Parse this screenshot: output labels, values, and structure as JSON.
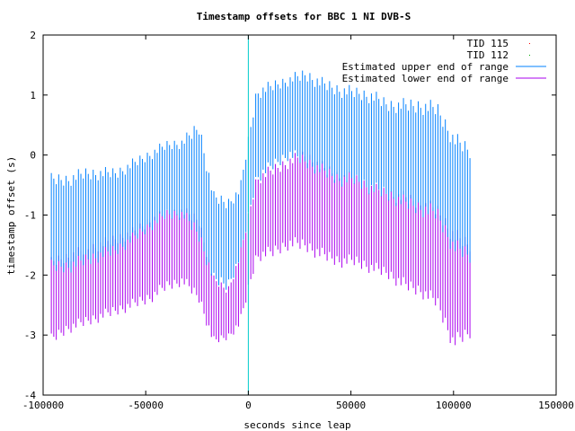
{
  "chart_data": {
    "type": "line",
    "title": "Timestamp offsets for BBC 1 NI DVB-S",
    "xlabel": "seconds since leap",
    "ylabel": "timestamp offset (s)",
    "xlim": [
      -100000,
      150000
    ],
    "ylim": [
      -4,
      2
    ],
    "x_ticks": [
      -100000,
      -50000,
      0,
      50000,
      100000,
      150000
    ],
    "x_tick_labels": [
      "-100000",
      "-50000",
      "0",
      "50000",
      "100000",
      "150000"
    ],
    "y_ticks": [
      -4,
      -3,
      -2,
      -1,
      0,
      1,
      2
    ],
    "y_tick_labels": [
      "-4",
      "-3",
      "-2",
      "-1",
      "0",
      "1",
      "2"
    ],
    "grid": false,
    "legend_position": "top-right",
    "leap_marker": {
      "x": 0,
      "color": "#00cccc"
    },
    "series": [
      {
        "name": "TID 115",
        "style": "points",
        "color": "#ff0000",
        "points": []
      },
      {
        "name": "TID 112",
        "style": "points",
        "color": "#00aa00",
        "points": []
      },
      {
        "name": "Estimated upper end of range",
        "style": "impulse-band",
        "color": "#0080ff",
        "x": [
          -96000,
          -88000,
          -80000,
          -72000,
          -64000,
          -56000,
          -48000,
          -40000,
          -32000,
          -24000,
          -17000,
          -10000,
          -4000,
          4000,
          12000,
          20000,
          28000,
          36000,
          44000,
          52000,
          60000,
          68000,
          76000,
          84000,
          92000,
          100000,
          108000
        ],
        "high": [
          -0.3,
          -0.3,
          -0.2,
          -0.2,
          -0.2,
          -0.05,
          0.1,
          0.25,
          0.3,
          0.6,
          -0.6,
          -0.7,
          -0.5,
          1.15,
          1.25,
          1.35,
          1.45,
          1.3,
          1.2,
          1.15,
          1.1,
          0.95,
          0.95,
          0.95,
          0.9,
          0.4,
          0.2
        ],
        "low": [
          -2.0,
          -2.0,
          -1.9,
          -1.8,
          -1.7,
          -1.5,
          -1.3,
          -1.1,
          -1.1,
          -1.5,
          -2.2,
          -2.3,
          -1.8,
          -0.5,
          -0.3,
          -0.1,
          -0.25,
          -0.4,
          -0.55,
          -0.55,
          -0.7,
          -0.8,
          -0.95,
          -1.05,
          -1.15,
          -1.7,
          -1.85
        ]
      },
      {
        "name": "Estimated lower end of range",
        "style": "impulse-band",
        "color": "#aa00ee",
        "x": [
          -96000,
          -88000,
          -80000,
          -72000,
          -64000,
          -56000,
          -48000,
          -40000,
          -32000,
          -24000,
          -17000,
          -10000,
          -4000,
          4000,
          12000,
          20000,
          28000,
          36000,
          44000,
          52000,
          60000,
          68000,
          76000,
          84000,
          92000,
          100000,
          108000
        ],
        "high": [
          -1.7,
          -1.6,
          -1.5,
          -1.4,
          -1.3,
          -1.2,
          -1.0,
          -0.9,
          -0.85,
          -1.0,
          -2.0,
          -2.2,
          -1.6,
          -0.3,
          -0.15,
          0.0,
          0.1,
          -0.1,
          -0.25,
          -0.3,
          -0.45,
          -0.55,
          -0.6,
          -0.7,
          -0.8,
          -1.2,
          -1.4
        ],
        "low": [
          -3.2,
          -3.0,
          -2.9,
          -2.8,
          -2.7,
          -2.6,
          -2.5,
          -2.3,
          -2.2,
          -2.5,
          -3.2,
          -3.1,
          -2.9,
          -1.8,
          -1.75,
          -1.6,
          -1.65,
          -1.8,
          -1.9,
          -1.9,
          -2.0,
          -2.1,
          -2.3,
          -2.4,
          -2.6,
          -3.3,
          -3.1
        ]
      }
    ]
  }
}
